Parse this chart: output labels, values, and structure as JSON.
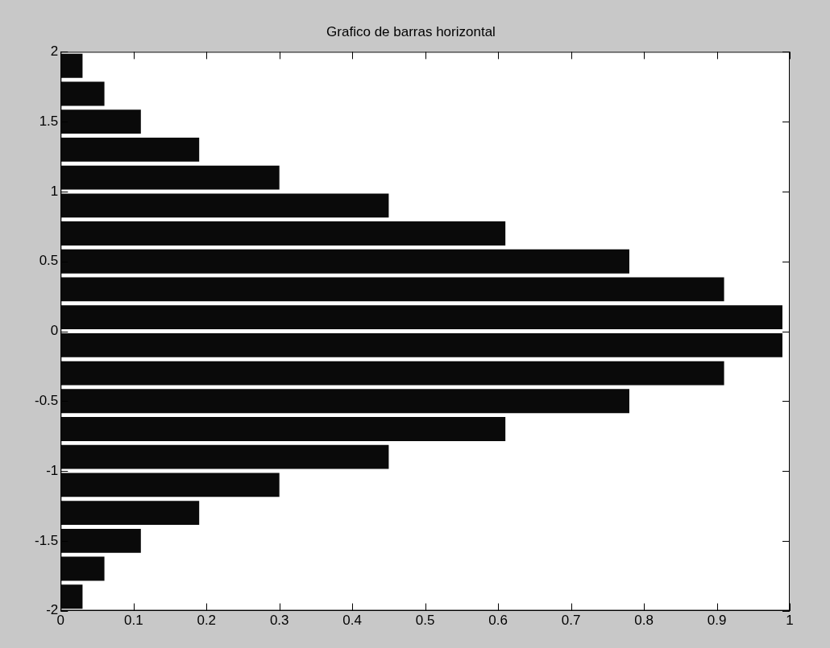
{
  "chart_data": {
    "type": "bar",
    "orientation": "horizontal",
    "title": "Grafico de barras horizontal",
    "x": [
      -1.9,
      -1.7,
      -1.5,
      -1.3,
      -1.1,
      -0.9,
      -0.7,
      -0.5,
      -0.3,
      -0.1,
      0.1,
      0.3,
      0.5,
      0.7,
      0.9,
      1.1,
      1.3,
      1.5,
      1.7,
      1.9
    ],
    "values": [
      0.03,
      0.06,
      0.11,
      0.19,
      0.3,
      0.45,
      0.61,
      0.78,
      0.91,
      0.99,
      0.99,
      0.91,
      0.78,
      0.61,
      0.45,
      0.3,
      0.19,
      0.11,
      0.06,
      0.03
    ],
    "color": "#0a0a0a",
    "xlim": [
      0,
      1
    ],
    "xticks": [
      0,
      0.1,
      0.2,
      0.3,
      0.4,
      0.5,
      0.6,
      0.7,
      0.8,
      0.9,
      1
    ],
    "ylim": [
      -2,
      2
    ],
    "yticks": [
      -2,
      -1.5,
      -1,
      -0.5,
      0,
      0.5,
      1,
      1.5,
      2
    ],
    "grid": false,
    "legend": false
  }
}
